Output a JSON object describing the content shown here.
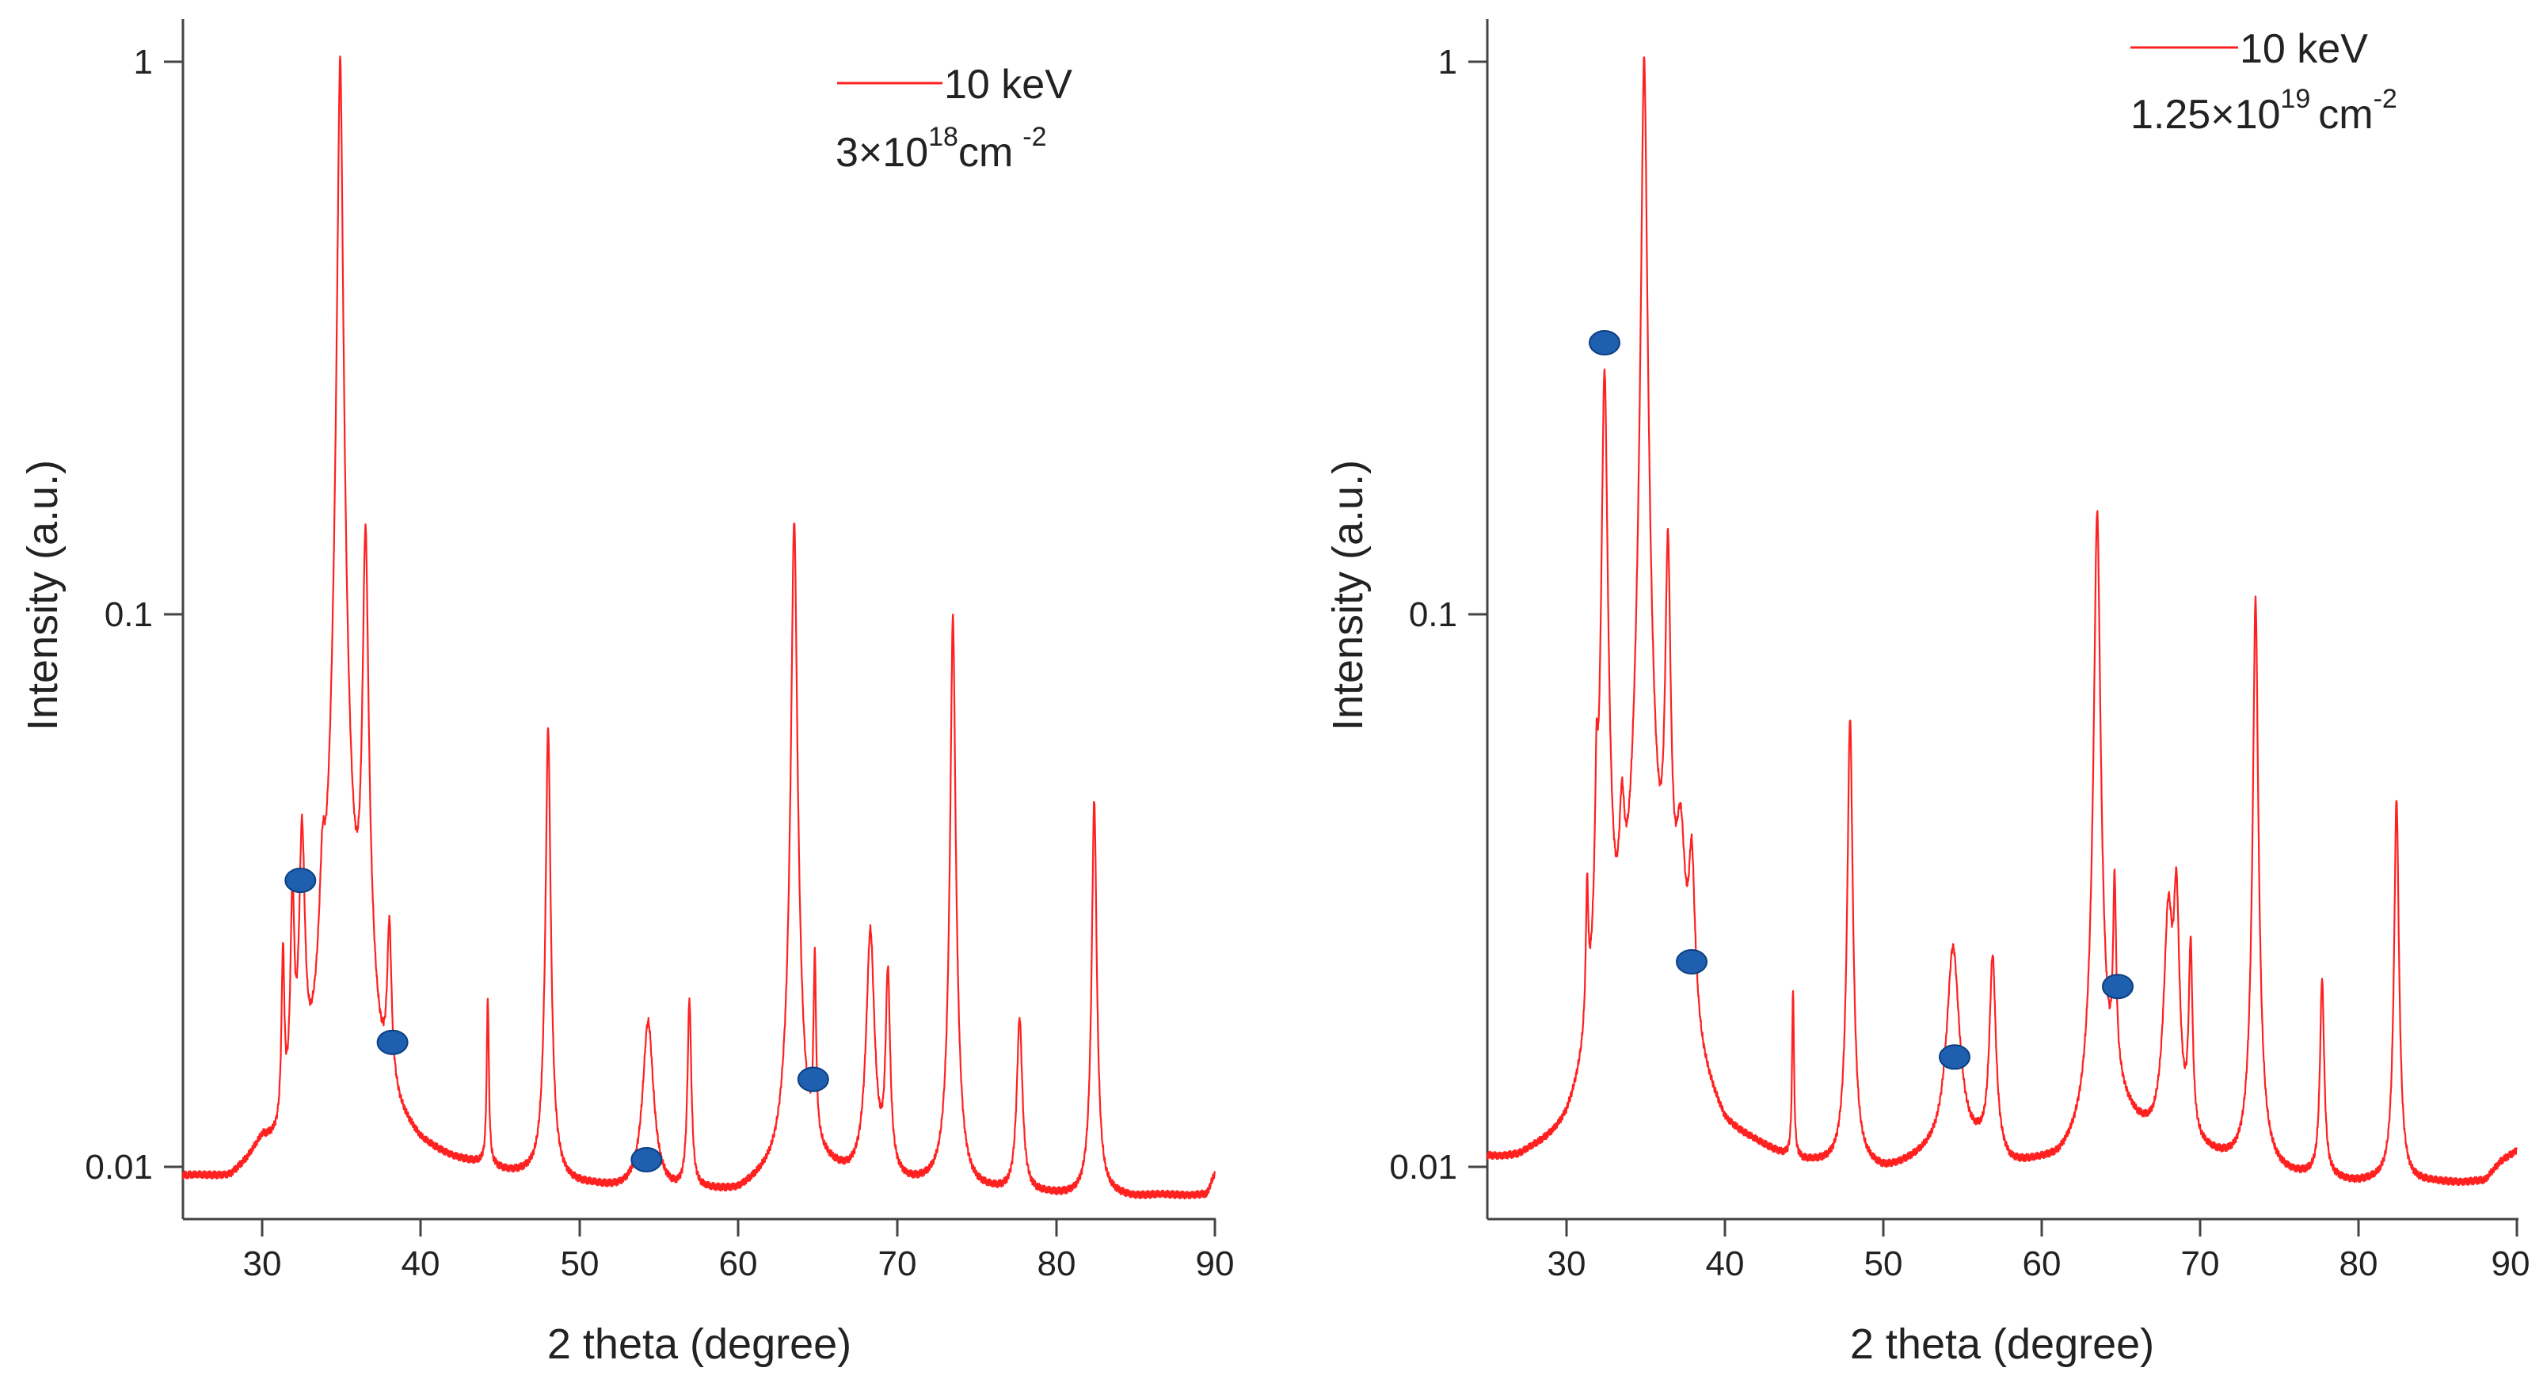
{
  "chart_data": [
    {
      "type": "line",
      "panel": "left",
      "xlabel": "2 theta (degree)",
      "ylabel": "Intensity (a.u.)",
      "yscale": "log",
      "xlim": [
        25,
        90
      ],
      "ylim": [
        0.008,
        1.25
      ],
      "xticks": [
        30,
        40,
        50,
        60,
        70,
        80,
        90
      ],
      "xtick_labels": [
        "30",
        "40",
        "50",
        "60",
        "70",
        "80",
        "90"
      ],
      "yticks": [
        0.01,
        0.1,
        1
      ],
      "ytick_labels": [
        "0.01",
        "0.1",
        "1"
      ],
      "line_color": "#ff2020",
      "marker_color": "#1f5fb0",
      "legend": {
        "label": "10 keV",
        "fluence_base": "3×10",
        "fluence_exp": "18",
        "fluence_unit": "cm",
        "fluence_unit_exp": "-2"
      },
      "series": [
        {
          "name": "10 keV",
          "baseline": [
            [
              25,
              0.0094
            ],
            [
              28,
              0.0092
            ],
            [
              29,
              0.0096
            ],
            [
              30,
              0.0103
            ],
            [
              31,
              0.0097
            ],
            [
              33,
              0.0102
            ],
            [
              34,
              0.0115
            ],
            [
              34.6,
              0.015
            ],
            [
              37.5,
              0.0115
            ],
            [
              40,
              0.0102
            ],
            [
              45,
              0.0096
            ],
            [
              50,
              0.0091
            ],
            [
              55,
              0.0088
            ],
            [
              60,
              0.0089
            ],
            [
              62.5,
              0.0095
            ],
            [
              65,
              0.0098
            ],
            [
              67,
              0.0094
            ],
            [
              70,
              0.0092
            ],
            [
              75,
              0.0089
            ],
            [
              80,
              0.0088
            ],
            [
              85,
              0.0088
            ],
            [
              89.5,
              0.0089
            ],
            [
              90,
              0.0097
            ]
          ],
          "peaks": [
            [
              31.3,
              0.0128,
              0.09
            ],
            [
              31.9,
              0.0192,
              0.12
            ],
            [
              32.5,
              0.028,
              0.17
            ],
            [
              33.8,
              0.0135,
              0.2
            ],
            [
              34.9,
              1.0,
              0.14
            ],
            [
              36.5,
              0.124,
              0.16
            ],
            [
              38.0,
              0.0135,
              0.14
            ],
            [
              44.2,
              0.0102,
              0.07
            ],
            [
              48.0,
              0.053,
              0.13
            ],
            [
              54.3,
              0.0093,
              0.35
            ],
            [
              56.9,
              0.011,
              0.12
            ],
            [
              63.5,
              0.138,
              0.15
            ],
            [
              64.8,
              0.013,
              0.08
            ],
            [
              68.3,
              0.0172,
              0.25
            ],
            [
              69.4,
              0.0128,
              0.14
            ],
            [
              73.5,
              0.09,
              0.13
            ],
            [
              77.7,
              0.0096,
              0.18
            ],
            [
              82.4,
              0.037,
              0.13
            ]
          ]
        }
      ],
      "markers": [
        [
          32.4,
          0.033
        ],
        [
          38.2,
          0.0168
        ],
        [
          54.2,
          0.0103
        ],
        [
          64.7,
          0.0144
        ]
      ]
    },
    {
      "type": "line",
      "panel": "right",
      "xlabel": "2 theta (degree)",
      "ylabel": "Intensity (a.u.)",
      "yscale": "log",
      "xlim": [
        25,
        90
      ],
      "ylim": [
        0.008,
        1.25
      ],
      "xticks": [
        30,
        40,
        50,
        60,
        70,
        80,
        90
      ],
      "xtick_labels": [
        "30",
        "40",
        "50",
        "60",
        "70",
        "80",
        "90"
      ],
      "yticks": [
        0.01,
        0.1,
        1
      ],
      "ytick_labels": [
        "0.01",
        "0.1",
        "1"
      ],
      "line_color": "#ff2020",
      "marker_color": "#1f5fb0",
      "legend": {
        "label": "10 keV",
        "fluence_base": "1.25×10",
        "fluence_exp": "19",
        "fluence_unit": "cm",
        "fluence_unit_exp": "-2"
      },
      "series": [
        {
          "name": "10 keV",
          "baseline": [
            [
              25,
              0.0101
            ],
            [
              27,
              0.0099
            ],
            [
              30,
              0.0104
            ],
            [
              31,
              0.0112
            ],
            [
              33,
              0.0135
            ],
            [
              34.5,
              0.016
            ],
            [
              36,
              0.0165
            ],
            [
              37,
              0.016
            ],
            [
              38.5,
              0.0125
            ],
            [
              40,
              0.0108
            ],
            [
              45,
              0.0098
            ],
            [
              50,
              0.0096
            ],
            [
              53,
              0.0102
            ],
            [
              56,
              0.0104
            ],
            [
              58,
              0.0098
            ],
            [
              61,
              0.01
            ],
            [
              62.5,
              0.0107
            ],
            [
              65,
              0.0125
            ],
            [
              66,
              0.0115
            ],
            [
              67,
              0.0108
            ],
            [
              70,
              0.0103
            ],
            [
              75,
              0.0096
            ],
            [
              80,
              0.0093
            ],
            [
              85,
              0.0093
            ],
            [
              88,
              0.0094
            ],
            [
              89,
              0.0102
            ],
            [
              90,
              0.0107
            ]
          ],
          "peaks": [
            [
              31.3,
              0.0145,
              0.08
            ],
            [
              31.9,
              0.0245,
              0.09
            ],
            [
              32.4,
              0.26,
              0.16
            ],
            [
              33.5,
              0.0185,
              0.18
            ],
            [
              34.9,
              1.0,
              0.15
            ],
            [
              36.4,
              0.112,
              0.15
            ],
            [
              37.2,
              0.02,
              0.3
            ],
            [
              37.9,
              0.0185,
              0.2
            ],
            [
              44.3,
              0.0107,
              0.06
            ],
            [
              47.9,
              0.055,
              0.14
            ],
            [
              54.4,
              0.0145,
              0.4
            ],
            [
              56.9,
              0.0135,
              0.2
            ],
            [
              63.5,
              0.142,
              0.16
            ],
            [
              64.6,
              0.019,
              0.1
            ],
            [
              68.0,
              0.0178,
              0.28
            ],
            [
              68.5,
              0.0192,
              0.18
            ],
            [
              69.4,
              0.014,
              0.12
            ],
            [
              73.5,
              0.097,
              0.13
            ],
            [
              77.7,
              0.0123,
              0.13
            ],
            [
              82.4,
              0.037,
              0.13
            ]
          ]
        }
      ],
      "markers": [
        [
          32.4,
          0.31
        ],
        [
          37.9,
          0.0235
        ],
        [
          54.5,
          0.0158
        ],
        [
          64.8,
          0.0212
        ]
      ]
    }
  ]
}
